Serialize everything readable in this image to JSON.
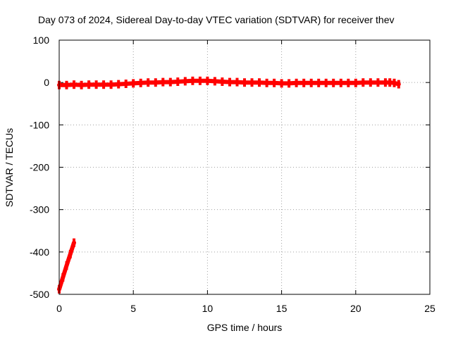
{
  "chart_data": {
    "type": "line",
    "title": "Day 073 of 2024, Sidereal Day-to-day VTEC variation (SDTVAR) for receiver thev",
    "xlabel": "GPS time / hours",
    "ylabel": "SDTVAR / TECUs",
    "xlim": [
      0,
      25
    ],
    "ylim": [
      -500,
      100
    ],
    "xticks": [
      0,
      5,
      10,
      15,
      20,
      25
    ],
    "yticks": [
      -500,
      -400,
      -300,
      -200,
      -100,
      0,
      100
    ],
    "grid": true,
    "series_color": "#ff0000",
    "series": [
      {
        "segments": [
          [
            [
              0.0,
              -488
            ],
            [
              0.25,
              -460
            ],
            [
              0.5,
              -432
            ],
            [
              0.75,
              -405
            ],
            [
              1.0,
              -378
            ]
          ],
          [
            [
              0.0,
              -6
            ],
            [
              0.5,
              -6
            ],
            [
              1.0,
              -5
            ],
            [
              1.5,
              -6
            ],
            [
              2.0,
              -5
            ],
            [
              2.5,
              -5
            ],
            [
              3.0,
              -5
            ],
            [
              3.5,
              -5
            ],
            [
              4.0,
              -4
            ],
            [
              4.5,
              -3
            ],
            [
              5.0,
              -2
            ],
            [
              5.5,
              -1
            ],
            [
              6.0,
              0
            ],
            [
              6.5,
              0
            ],
            [
              7.0,
              1
            ],
            [
              7.5,
              1
            ],
            [
              8.0,
              2
            ],
            [
              8.5,
              3
            ],
            [
              9.0,
              4
            ],
            [
              9.5,
              4
            ],
            [
              10.0,
              4
            ],
            [
              10.5,
              3
            ],
            [
              11.0,
              2
            ],
            [
              11.5,
              1
            ],
            [
              12.0,
              1
            ],
            [
              12.5,
              0
            ],
            [
              13.0,
              0
            ],
            [
              13.5,
              0
            ],
            [
              14.0,
              -1
            ],
            [
              14.5,
              -1
            ],
            [
              15.0,
              -2
            ],
            [
              15.5,
              -2
            ],
            [
              16.0,
              -1
            ],
            [
              16.5,
              -1
            ],
            [
              17.0,
              -1
            ],
            [
              17.5,
              -1
            ],
            [
              18.0,
              -1
            ],
            [
              18.5,
              -1
            ],
            [
              19.0,
              -1
            ],
            [
              19.5,
              -1
            ],
            [
              20.0,
              -1
            ],
            [
              20.5,
              0
            ],
            [
              21.0,
              0
            ],
            [
              21.5,
              0
            ],
            [
              22.0,
              0
            ],
            [
              22.3,
              0
            ],
            [
              22.6,
              -1
            ],
            [
              22.9,
              -4
            ]
          ]
        ]
      }
    ]
  }
}
